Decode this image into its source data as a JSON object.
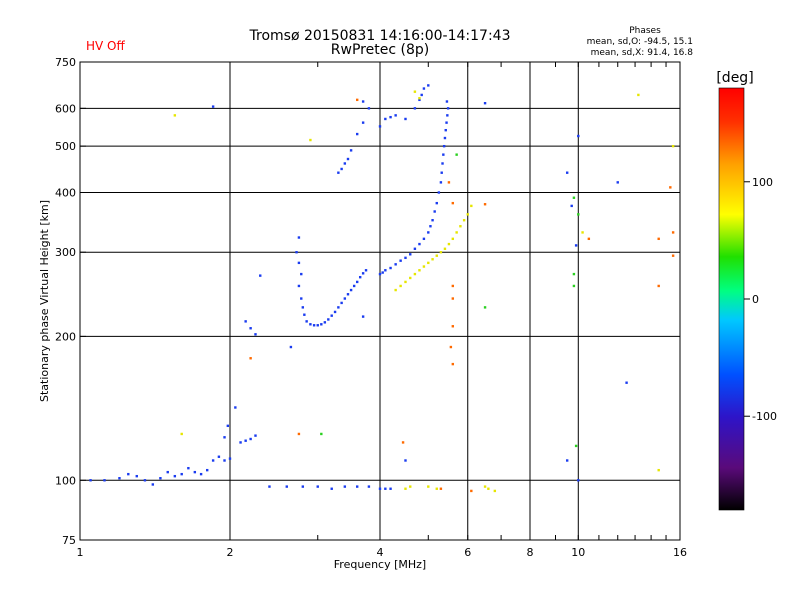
{
  "status": {
    "hv_label": "HV Off",
    "hv_color": "#ff0000"
  },
  "phases_box": {
    "title": "Phases",
    "line_o": "mean, sd,O: -94.5, 15.1",
    "line_x": "mean, sd,X:  91.4, 16.8"
  },
  "chart_data": {
    "type": "scatter",
    "title": "Tromsø 20150831 14:16:00-14:17:43",
    "subtitle": "RwPretec (8p)",
    "xlabel": "Frequency [MHz]",
    "ylabel": "Stationary phase Virtual Height [km]",
    "xscale": "log",
    "yscale": "log",
    "xlim": [
      1,
      16
    ],
    "ylim": [
      75,
      750
    ],
    "xticks": [
      1,
      2,
      4,
      6,
      8,
      10,
      16
    ],
    "yticks": [
      75,
      100,
      200,
      300,
      400,
      500,
      600,
      750
    ],
    "grid": true,
    "colorbar": {
      "label": "[deg]",
      "range": [
        -180,
        180
      ],
      "ticks": [
        -100,
        0,
        100
      ],
      "colors": [
        "#000000",
        "#5a0a7a",
        "#2e14c8",
        "#0050ff",
        "#00c8ff",
        "#00ff80",
        "#20e000",
        "#ffff00",
        "#ffa000",
        "#ff3000",
        "#ff0000"
      ]
    },
    "series": [
      {
        "mode": "O",
        "color": "#1a3cf0",
        "points": [
          [
            1.05,
            100
          ],
          [
            1.12,
            100
          ],
          [
            1.2,
            101
          ],
          [
            1.25,
            103
          ],
          [
            1.3,
            102
          ],
          [
            1.35,
            100
          ],
          [
            1.4,
            98
          ],
          [
            1.45,
            101
          ],
          [
            1.5,
            104
          ],
          [
            1.55,
            102
          ],
          [
            1.6,
            103
          ],
          [
            1.65,
            106
          ],
          [
            1.7,
            104
          ],
          [
            1.75,
            103
          ],
          [
            1.8,
            105
          ],
          [
            1.85,
            110
          ],
          [
            1.9,
            112
          ],
          [
            1.95,
            110
          ],
          [
            2.0,
            111
          ],
          [
            1.95,
            123
          ],
          [
            1.98,
            130
          ],
          [
            2.05,
            142
          ],
          [
            2.1,
            120
          ],
          [
            2.15,
            121
          ],
          [
            2.2,
            122
          ],
          [
            2.25,
            124
          ],
          [
            2.15,
            215
          ],
          [
            2.2,
            208
          ],
          [
            2.25,
            202
          ],
          [
            2.3,
            268
          ],
          [
            2.65,
            190
          ],
          [
            2.75,
            322
          ],
          [
            2.72,
            300
          ],
          [
            2.75,
            285
          ],
          [
            2.78,
            270
          ],
          [
            2.75,
            255
          ],
          [
            2.78,
            240
          ],
          [
            2.8,
            230
          ],
          [
            2.82,
            222
          ],
          [
            2.85,
            215
          ],
          [
            2.9,
            212
          ],
          [
            2.95,
            211
          ],
          [
            3.0,
            211
          ],
          [
            3.05,
            212
          ],
          [
            3.1,
            214
          ],
          [
            3.15,
            217
          ],
          [
            3.2,
            221
          ],
          [
            3.25,
            225
          ],
          [
            3.3,
            230
          ],
          [
            3.35,
            235
          ],
          [
            3.4,
            240
          ],
          [
            3.45,
            245
          ],
          [
            3.5,
            250
          ],
          [
            3.55,
            255
          ],
          [
            3.6,
            260
          ],
          [
            3.65,
            266
          ],
          [
            3.7,
            271
          ],
          [
            3.75,
            275
          ],
          [
            3.3,
            440
          ],
          [
            3.35,
            448
          ],
          [
            3.4,
            460
          ],
          [
            3.45,
            470
          ],
          [
            3.5,
            490
          ],
          [
            3.6,
            530
          ],
          [
            3.7,
            560
          ],
          [
            3.8,
            600
          ],
          [
            4.0,
            270
          ],
          [
            4.05,
            272
          ],
          [
            4.1,
            275
          ],
          [
            4.2,
            278
          ],
          [
            4.3,
            283
          ],
          [
            4.4,
            288
          ],
          [
            4.5,
            292
          ],
          [
            4.6,
            297
          ],
          [
            4.7,
            305
          ],
          [
            4.8,
            312
          ],
          [
            4.9,
            320
          ],
          [
            5.0,
            330
          ],
          [
            5.05,
            340
          ],
          [
            5.1,
            350
          ],
          [
            5.15,
            365
          ],
          [
            5.2,
            380
          ],
          [
            5.25,
            400
          ],
          [
            5.3,
            420
          ],
          [
            5.32,
            440
          ],
          [
            5.34,
            460
          ],
          [
            5.36,
            480
          ],
          [
            5.38,
            500
          ],
          [
            5.4,
            520
          ],
          [
            5.42,
            540
          ],
          [
            5.44,
            560
          ],
          [
            5.46,
            580
          ],
          [
            5.48,
            600
          ],
          [
            5.45,
            620
          ],
          [
            4.0,
            550
          ],
          [
            4.1,
            570
          ],
          [
            4.2,
            575
          ],
          [
            4.3,
            580
          ],
          [
            4.5,
            570
          ],
          [
            4.7,
            600
          ],
          [
            4.8,
            625
          ],
          [
            4.85,
            640
          ],
          [
            4.9,
            660
          ],
          [
            5.0,
            670
          ],
          [
            2.4,
            97
          ],
          [
            2.6,
            97
          ],
          [
            2.8,
            97
          ],
          [
            3.0,
            97
          ],
          [
            3.2,
            96
          ],
          [
            3.4,
            97
          ],
          [
            3.6,
            97
          ],
          [
            3.8,
            97
          ],
          [
            4.0,
            96
          ],
          [
            4.1,
            96
          ],
          [
            4.2,
            96
          ],
          [
            1.85,
            605
          ],
          [
            3.7,
            620
          ],
          [
            6.5,
            615
          ],
          [
            9.5,
            440
          ],
          [
            9.7,
            375
          ],
          [
            9.9,
            310
          ],
          [
            10,
            525
          ],
          [
            12,
            420
          ],
          [
            12.5,
            160
          ],
          [
            9.5,
            110
          ],
          [
            10,
            100
          ],
          [
            4.5,
            110
          ],
          [
            3.7,
            220
          ]
        ]
      },
      {
        "mode": "X",
        "color": "#e6e600",
        "points": [
          [
            4.3,
            250
          ],
          [
            4.4,
            255
          ],
          [
            4.5,
            260
          ],
          [
            4.6,
            265
          ],
          [
            4.7,
            270
          ],
          [
            4.8,
            275
          ],
          [
            4.9,
            280
          ],
          [
            5.0,
            285
          ],
          [
            5.1,
            290
          ],
          [
            5.2,
            295
          ],
          [
            5.3,
            300
          ],
          [
            5.4,
            305
          ],
          [
            5.5,
            312
          ],
          [
            5.6,
            320
          ],
          [
            5.7,
            330
          ],
          [
            5.8,
            340
          ],
          [
            5.9,
            350
          ],
          [
            6.0,
            360
          ],
          [
            6.1,
            375
          ],
          [
            4.7,
            650
          ],
          [
            4.8,
            630
          ],
          [
            1.55,
            580
          ],
          [
            2.9,
            515
          ],
          [
            4.5,
            96
          ],
          [
            4.6,
            97
          ],
          [
            5.0,
            97
          ],
          [
            5.2,
            96
          ],
          [
            6.5,
            97
          ],
          [
            6.6,
            96
          ],
          [
            6.8,
            95
          ],
          [
            1.6,
            125
          ],
          [
            14.5,
            105
          ],
          [
            15.5,
            500
          ],
          [
            13.2,
            640
          ],
          [
            10.2,
            330
          ]
        ]
      },
      {
        "mode": "other",
        "color": "#ff6a00",
        "points": [
          [
            3.6,
            625
          ],
          [
            2.2,
            180
          ],
          [
            2.75,
            125
          ],
          [
            4.45,
            120
          ],
          [
            5.5,
            420
          ],
          [
            5.6,
            380
          ],
          [
            5.6,
            210
          ],
          [
            5.55,
            190
          ],
          [
            5.6,
            175
          ],
          [
            5.6,
            240
          ],
          [
            5.6,
            255
          ],
          [
            5.3,
            96
          ],
          [
            6.1,
            95
          ],
          [
            6.5,
            378
          ],
          [
            10.5,
            320
          ],
          [
            14.5,
            320
          ],
          [
            14.5,
            255
          ],
          [
            15.5,
            295
          ],
          [
            15.3,
            410
          ],
          [
            15.5,
            330
          ]
        ]
      },
      {
        "mode": "other",
        "color": "#2ad020",
        "points": [
          [
            3.05,
            125
          ],
          [
            9.8,
            390
          ],
          [
            9.8,
            270
          ],
          [
            9.8,
            255
          ],
          [
            6.5,
            230
          ],
          [
            9.9,
            118
          ],
          [
            5.7,
            480
          ],
          [
            10,
            360
          ]
        ]
      }
    ]
  }
}
